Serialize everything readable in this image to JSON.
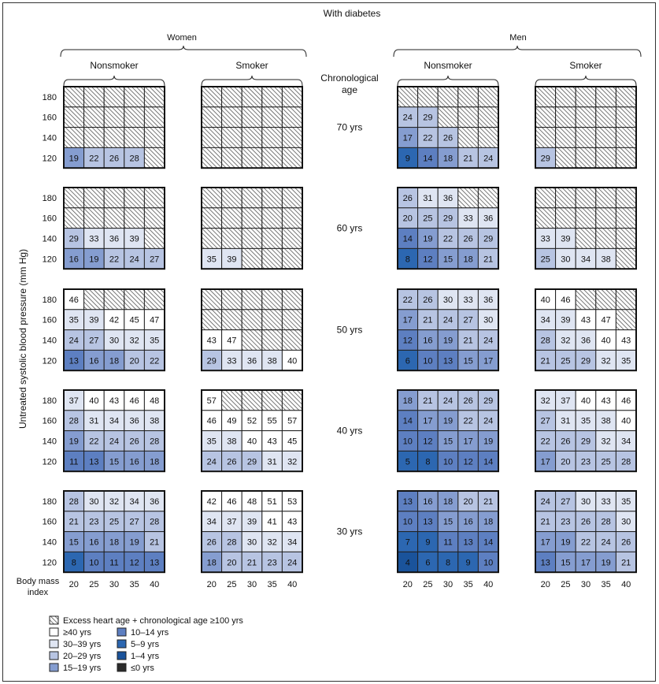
{
  "chart_data": {
    "type": "heatmap",
    "title": "With diabetes",
    "ylabel": "Untreated systolic blood pressure (mm Hg)",
    "xlabel": "Body mass index",
    "age_header": "Chronological age",
    "groups": [
      "Women",
      "Men"
    ],
    "smoking_labels": [
      "Nonsmoker",
      "Smoker"
    ],
    "x": [
      "20",
      "25",
      "30",
      "35",
      "40"
    ],
    "y": [
      "180",
      "160",
      "140",
      "120"
    ],
    "ages": [
      "70 yrs",
      "60 yrs",
      "50 yrs",
      "40 yrs",
      "30 yrs"
    ],
    "note": "Cell values: excess heart age in years; null = excess heart age + chronological age ≥100 yrs",
    "panels": [
      {
        "sex": "Women",
        "smoking": "Nonsmoker",
        "grids": [
          [
            [
              null,
              null,
              null,
              null,
              null
            ],
            [
              null,
              null,
              null,
              null,
              null
            ],
            [
              null,
              null,
              null,
              null,
              null
            ],
            [
              19,
              22,
              26,
              28,
              null
            ]
          ],
          [
            [
              null,
              null,
              null,
              null,
              null
            ],
            [
              null,
              null,
              null,
              null,
              null
            ],
            [
              29,
              33,
              36,
              39,
              null
            ],
            [
              16,
              19,
              22,
              24,
              27
            ]
          ],
          [
            [
              46,
              null,
              null,
              null,
              null
            ],
            [
              35,
              39,
              42,
              45,
              47
            ],
            [
              24,
              27,
              30,
              32,
              35
            ],
            [
              13,
              16,
              18,
              20,
              22
            ]
          ],
          [
            [
              37,
              40,
              43,
              46,
              48
            ],
            [
              28,
              31,
              34,
              36,
              38
            ],
            [
              19,
              22,
              24,
              26,
              28
            ],
            [
              11,
              13,
              15,
              16,
              18
            ]
          ],
          [
            [
              28,
              30,
              32,
              34,
              36
            ],
            [
              21,
              23,
              25,
              27,
              28
            ],
            [
              15,
              16,
              18,
              19,
              21
            ],
            [
              8,
              10,
              11,
              12,
              13
            ]
          ]
        ]
      },
      {
        "sex": "Women",
        "smoking": "Smoker",
        "grids": [
          [
            [
              null,
              null,
              null,
              null,
              null
            ],
            [
              null,
              null,
              null,
              null,
              null
            ],
            [
              null,
              null,
              null,
              null,
              null
            ],
            [
              null,
              null,
              null,
              null,
              null
            ]
          ],
          [
            [
              null,
              null,
              null,
              null,
              null
            ],
            [
              null,
              null,
              null,
              null,
              null
            ],
            [
              null,
              null,
              null,
              null,
              null
            ],
            [
              35,
              39,
              null,
              null,
              null
            ]
          ],
          [
            [
              null,
              null,
              null,
              null,
              null
            ],
            [
              null,
              null,
              null,
              null,
              null
            ],
            [
              43,
              47,
              null,
              null,
              null
            ],
            [
              29,
              33,
              36,
              38,
              40
            ]
          ],
          [
            [
              57,
              null,
              null,
              null,
              null
            ],
            [
              46,
              49,
              52,
              55,
              57
            ],
            [
              35,
              38,
              40,
              43,
              45
            ],
            [
              24,
              26,
              29,
              31,
              32
            ]
          ],
          [
            [
              42,
              46,
              48,
              51,
              53
            ],
            [
              34,
              37,
              39,
              41,
              43
            ],
            [
              26,
              28,
              30,
              32,
              34
            ],
            [
              18,
              20,
              21,
              23,
              24
            ]
          ]
        ]
      },
      {
        "sex": "Men",
        "smoking": "Nonsmoker",
        "grids": [
          [
            [
              null,
              null,
              null,
              null,
              null
            ],
            [
              24,
              29,
              null,
              null,
              null
            ],
            [
              17,
              22,
              26,
              null,
              null
            ],
            [
              9,
              14,
              18,
              21,
              24
            ]
          ],
          [
            [
              26,
              31,
              36,
              null,
              null
            ],
            [
              20,
              25,
              29,
              33,
              36
            ],
            [
              14,
              19,
              22,
              26,
              29
            ],
            [
              8,
              12,
              15,
              18,
              21
            ]
          ],
          [
            [
              22,
              26,
              30,
              33,
              36
            ],
            [
              17,
              21,
              24,
              27,
              30
            ],
            [
              12,
              16,
              19,
              21,
              24
            ],
            [
              6,
              10,
              13,
              15,
              17
            ]
          ],
          [
            [
              18,
              21,
              24,
              26,
              29
            ],
            [
              14,
              17,
              19,
              22,
              24
            ],
            [
              10,
              12,
              15,
              17,
              19
            ],
            [
              5,
              8,
              10,
              12,
              14
            ]
          ],
          [
            [
              13,
              16,
              18,
              20,
              21
            ],
            [
              10,
              13,
              15,
              16,
              18
            ],
            [
              7,
              9,
              11,
              13,
              14
            ],
            [
              4,
              6,
              8,
              9,
              10
            ]
          ]
        ]
      },
      {
        "sex": "Men",
        "smoking": "Smoker",
        "grids": [
          [
            [
              null,
              null,
              null,
              null,
              null
            ],
            [
              null,
              null,
              null,
              null,
              null
            ],
            [
              null,
              null,
              null,
              null,
              null
            ],
            [
              29,
              null,
              null,
              null,
              null
            ]
          ],
          [
            [
              null,
              null,
              null,
              null,
              null
            ],
            [
              null,
              null,
              null,
              null,
              null
            ],
            [
              33,
              39,
              null,
              null,
              null
            ],
            [
              25,
              30,
              34,
              38,
              null
            ]
          ],
          [
            [
              40,
              46,
              null,
              null,
              null
            ],
            [
              34,
              39,
              43,
              47,
              null
            ],
            [
              28,
              32,
              36,
              40,
              43
            ],
            [
              21,
              25,
              29,
              32,
              35
            ]
          ],
          [
            [
              32,
              37,
              40,
              43,
              46
            ],
            [
              27,
              31,
              35,
              38,
              40
            ],
            [
              22,
              26,
              29,
              32,
              34
            ],
            [
              17,
              20,
              23,
              25,
              28
            ]
          ],
          [
            [
              24,
              27,
              30,
              33,
              35
            ],
            [
              21,
              23,
              26,
              28,
              30
            ],
            [
              17,
              19,
              22,
              24,
              26
            ],
            [
              13,
              15,
              17,
              19,
              21
            ]
          ]
        ]
      }
    ],
    "legend": {
      "hatch_label": "Excess heart age + chronological age ≥100 yrs",
      "items": [
        {
          "label": "≥40 yrs",
          "color": "#ffffff"
        },
        {
          "label": "30–39 yrs",
          "color": "#dfe5f2"
        },
        {
          "label": "20–29 yrs",
          "color": "#b7c4e2"
        },
        {
          "label": "15–19 yrs",
          "color": "#859dd0"
        },
        {
          "label": "10–14 yrs",
          "color": "#5d7fc1"
        },
        {
          "label": "5–9 yrs",
          "color": "#2c67b1"
        },
        {
          "label": "1–4 yrs",
          "color": "#1a539b"
        },
        {
          "label": "≤0 yrs",
          "color": "#2b2b2b"
        }
      ]
    }
  }
}
